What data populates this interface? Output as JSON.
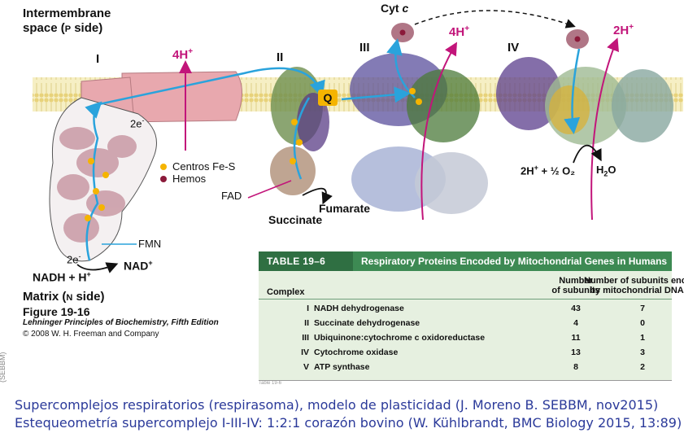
{
  "figure": {
    "intermembrane": "Intermembrane",
    "space": "space (",
    "space_p": "P",
    "space_side": " side)",
    "complex_I": "I",
    "complex_II": "II",
    "complex_III": "III",
    "complex_IV": "IV",
    "proton_4h_left": "4H",
    "proton_4h_right": "4H",
    "proton_2h": "2H",
    "plus_sup": "+",
    "cytc": "Cyt ",
    "cytc_c": "c",
    "q": "Q",
    "e_top": "2e",
    "e_bottom": "2e",
    "minus_sup": "-",
    "nadh": "NADH + H",
    "nad": "NAD",
    "fmn": "FMN",
    "fad": "FAD",
    "succinate": "Succinate",
    "fumarate": "Fumarate",
    "legend_fes": "Centros Fe-S",
    "legend_hemos": "Hemos",
    "matrix": "Matrix (",
    "matrix_n": "N",
    "matrix_side": " side)",
    "o2_left": "2H",
    "h2o": "H",
    "h2o_o": "O",
    "fig_title": "Figure 19-16",
    "fig_book": "Lehninger Principles of Biochemistry, Fifth Edition",
    "fig_copy": "© 2008 W. H. Freeman and Company",
    "side_text": "(SEBBM)"
  },
  "table": {
    "number": "TABLE 19–6",
    "title": "Respiratory Proteins Encoded by Mitochondrial Genes in Humans",
    "col_complex": "Complex",
    "col_num_1": "Number",
    "col_num_2": "of subunits",
    "col_mt_1": "Number of subunits encoded",
    "col_mt_2": "by mitochondrial DNA",
    "rows": [
      {
        "roman": "I",
        "name": "NADH dehydrogenase",
        "subunits": "43",
        "mtdna": "7"
      },
      {
        "roman": "II",
        "name": "Succinate dehydrogenase",
        "subunits": "4",
        "mtdna": "0"
      },
      {
        "roman": "III",
        "name": "Ubiquinone:cytochrome c oxidoreductase",
        "subunits": "11",
        "mtdna": "1"
      },
      {
        "roman": "IV",
        "name": "Cytochrome oxidase",
        "subunits": "13",
        "mtdna": "3"
      },
      {
        "roman": "V",
        "name": "ATP synthase",
        "subunits": "8",
        "mtdna": "2"
      }
    ],
    "footer": "Table 19-6"
  },
  "caption": {
    "line1": "Supercomplejos respiratorios (respirasoma),  modelo de plasticidad (J. Moreno B. SEBBM, nov2015)",
    "line2": "Estequeometría supercomplejo I-III-IV: 1:2:1 corazón bovino (W. Kühlbrandt, BMC Biology 2015, 13:89)"
  },
  "colors": {
    "magenta": "#c2157a",
    "blue_arrow": "#2aa3dc",
    "pink_complex": "#e8a8ae",
    "table_green": "#3d8a53",
    "caption_blue": "#2b3a9a",
    "fes_yellow": "#f5b400",
    "heme_red": "#8b1a3a"
  }
}
